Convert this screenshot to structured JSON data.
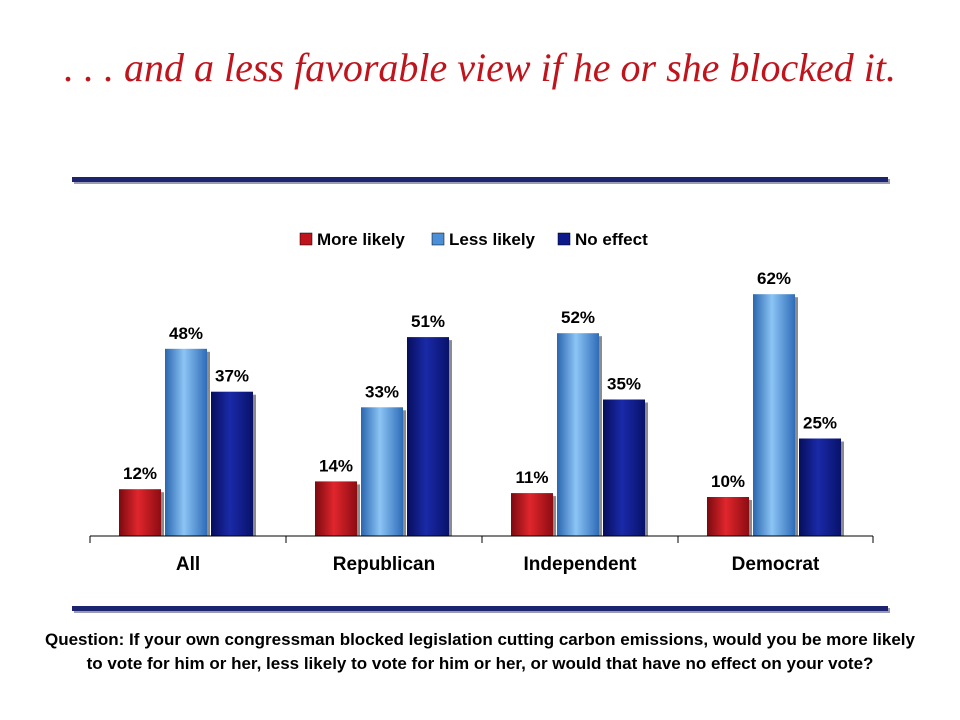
{
  "title": ". . . and a less favorable view if he or she blocked it.",
  "question": "Question: If your own congressman blocked legislation cutting carbon emissions, would you be more likely to vote for him or her, less likely to vote for him or her, or would that have no effect on your vote?",
  "chart_data": {
    "type": "bar",
    "categories": [
      "All",
      "Republican",
      "Independent",
      "Democrat"
    ],
    "series": [
      {
        "name": "More likely",
        "values": [
          12,
          14,
          11,
          10
        ],
        "labels": [
          "12%",
          "14%",
          "11%",
          "10%"
        ],
        "color": "#c0141c"
      },
      {
        "name": "Less likely",
        "values": [
          48,
          33,
          52,
          62
        ],
        "labels": [
          "48%",
          "33%",
          "52%",
          "62%"
        ],
        "color": "#4a8fd8"
      },
      {
        "name": "No effect",
        "values": [
          37,
          51,
          35,
          25
        ],
        "labels": [
          "37%",
          "51%",
          "35%",
          "25%"
        ],
        "color": "#0c1a8c"
      }
    ],
    "legend_position": "top-right",
    "grid": false
  }
}
